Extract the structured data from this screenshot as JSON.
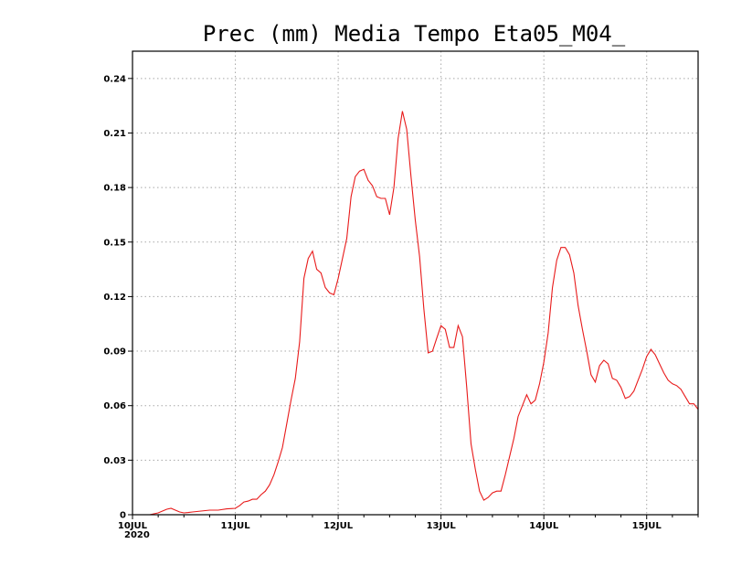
{
  "chart_data": {
    "type": "line",
    "title": "Prec (mm) Media Tempo Eta05_M04_",
    "xlabel": "",
    "ylabel": "",
    "ylim": [
      0,
      0.255
    ],
    "yticks": [
      0,
      0.03,
      0.06,
      0.09,
      0.12,
      0.15,
      0.18,
      0.21,
      0.24
    ],
    "ytick_labels": [
      "0",
      "0.03",
      "0.06",
      "0.09",
      "0.12",
      "0.15",
      "0.18",
      "0.21",
      "0.24"
    ],
    "xlim_hours": [
      0,
      132
    ],
    "xticks": [
      {
        "hour": 0,
        "label": "10JUL",
        "sublabel": "2020"
      },
      {
        "hour": 24,
        "label": "11JUL",
        "sublabel": ""
      },
      {
        "hour": 48,
        "label": "12JUL",
        "sublabel": ""
      },
      {
        "hour": 72,
        "label": "13JUL",
        "sublabel": ""
      },
      {
        "hour": 96,
        "label": "14JUL",
        "sublabel": ""
      },
      {
        "hour": 120,
        "label": "15JUL",
        "sublabel": ""
      }
    ],
    "grid": true,
    "series": [
      {
        "color": "#e81a1a",
        "x": [
          0,
          2,
          4,
          6,
          8,
          9,
          10,
          11,
          12,
          13,
          14,
          16,
          18,
          20,
          22,
          24,
          25,
          26,
          27,
          28,
          29,
          30,
          31,
          32,
          33,
          34,
          35,
          36,
          37,
          38,
          39,
          40,
          41,
          42,
          43,
          44,
          45,
          46,
          47,
          48,
          49,
          50,
          51,
          52,
          53,
          54,
          55,
          56,
          57,
          58,
          59,
          60,
          61,
          62,
          63,
          64,
          65,
          66,
          67,
          68,
          69,
          70,
          71,
          72,
          73,
          74,
          75,
          76,
          77,
          78,
          79,
          80,
          81,
          82,
          83,
          84,
          85,
          86,
          87,
          88,
          89,
          90,
          91,
          92,
          93,
          94,
          95,
          96,
          97,
          98,
          99,
          100,
          101,
          102,
          103,
          104,
          105,
          106,
          107,
          108,
          109,
          110,
          111,
          112,
          113,
          114,
          115,
          116,
          117,
          118,
          119,
          120,
          121,
          122,
          123,
          124,
          125,
          126,
          127,
          128,
          129,
          130,
          131,
          132
        ],
        "y": [
          0,
          0,
          0,
          0.001,
          0.003,
          0.0035,
          0.0025,
          0.0015,
          0.001,
          0.0012,
          0.0015,
          0.002,
          0.0025,
          0.0025,
          0.0032,
          0.0035,
          0.005,
          0.007,
          0.0075,
          0.0085,
          0.0085,
          0.011,
          0.013,
          0.0165,
          0.022,
          0.029,
          0.037,
          0.05,
          0.063,
          0.075,
          0.095,
          0.13,
          0.141,
          0.145,
          0.135,
          0.133,
          0.125,
          0.122,
          0.121,
          0.13,
          0.141,
          0.152,
          0.175,
          0.186,
          0.189,
          0.19,
          0.184,
          0.181,
          0.175,
          0.174,
          0.174,
          0.165,
          0.18,
          0.207,
          0.222,
          0.212,
          0.186,
          0.162,
          0.142,
          0.113,
          0.089,
          0.09,
          0.097,
          0.104,
          0.102,
          0.092,
          0.092,
          0.104,
          0.098,
          0.07,
          0.039,
          0.025,
          0.013,
          0.008,
          0.0095,
          0.012,
          0.013,
          0.013,
          0.022,
          0.032,
          0.042,
          0.054,
          0.06,
          0.066,
          0.061,
          0.063,
          0.072,
          0.084,
          0.1,
          0.125,
          0.14,
          0.147,
          0.147,
          0.143,
          0.133,
          0.115,
          0.102,
          0.09,
          0.077,
          0.073,
          0.082,
          0.085,
          0.083,
          0.075,
          0.074,
          0.07,
          0.064,
          0.065,
          0.068,
          0.074,
          0.08,
          0.087,
          0.091,
          0.088,
          0.083,
          0.078,
          0.074,
          0.072,
          0.071,
          0.069,
          0.065,
          0.061,
          0.061,
          0.058
        ]
      }
    ]
  }
}
